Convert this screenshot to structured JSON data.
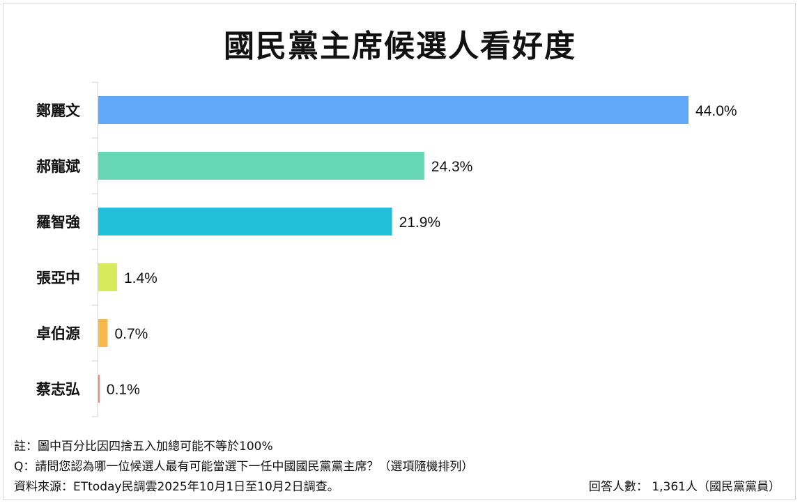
{
  "chart_data": {
    "type": "bar",
    "orientation": "horizontal",
    "title": "國民黨主席候選人看好度",
    "categories": [
      "鄭麗文",
      "郝龍斌",
      "羅智強",
      "張亞中",
      "卓伯源",
      "蔡志弘"
    ],
    "values": [
      44.0,
      24.3,
      21.9,
      1.4,
      0.7,
      0.1
    ],
    "value_labels": [
      "44.0%",
      "24.3%",
      "21.9%",
      "1.4%",
      "0.7%",
      "0.1%"
    ],
    "colors": [
      "#62a8f8",
      "#66d6b4",
      "#22c0d8",
      "#d6eb5a",
      "#f8b84e",
      "#f07f7f"
    ],
    "xlim": [
      0,
      100
    ],
    "xlabel": "",
    "ylabel": "",
    "grid": false,
    "legend": "none"
  },
  "notes": {
    "note": "註：圖中百分比因四捨五入加總可能不等於100%",
    "question": "Q：請問您認為哪一位候選人最有可能當選下一任中國國民黨黨主席？（選項隨機排列）",
    "source": "資料來源：ETtoday民調雲2025年10月1日至10月2日調查。",
    "respondents": "回答人數： 1,361人（國民黨黨員）"
  }
}
